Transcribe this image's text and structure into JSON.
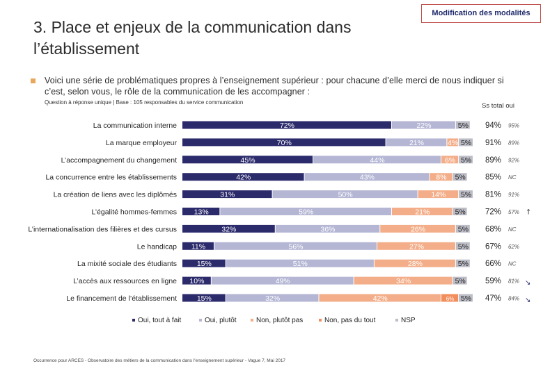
{
  "header": {
    "title": "3. Place et enjeux de la communication dans l’établissement",
    "tag": "Modification des modalités"
  },
  "intro": {
    "question": "Voici une série de problématiques propres à l’enseignement supérieur : pour chacune d’elle merci de nous indiquer si c’est, selon vous, le rôle de la communication de les accompagner :",
    "note": "Question à réponse unique | Base : 105 responsables du service communication"
  },
  "footer": "Occurrence pour ARCES - Observatoire des métiers de la communication dans l'enseignement supérieur - Vague 7, Mai 2017",
  "colors": {
    "s1": "#2b2a6b",
    "s2": "#b4b6d4",
    "s3": "#f3ae89",
    "s4": "#f28d5c",
    "s5": "#bcbdc7",
    "ss_arrow_up": "#333333",
    "ss_arrow_down": "#1f2a6b"
  },
  "chart_data": {
    "type": "bar",
    "orientation": "horizontal",
    "stacked": true,
    "categories": [
      "La communication interne",
      "La marque employeur",
      "L’accompagnement du changement",
      "La concurrence entre les établissements",
      "La création de liens avec les diplômés",
      "L’égalité hommes-femmes",
      "L’internationalisation des filières et des cursus",
      "Le handicap",
      "La mixité sociale des étudiants",
      "L’accès aux ressources en ligne",
      "Le financement de l’établissement"
    ],
    "series": [
      {
        "name": "Oui, tout à fait",
        "values": [
          72,
          70,
          45,
          42,
          31,
          13,
          32,
          11,
          15,
          10,
          15
        ]
      },
      {
        "name": "Oui, plutôt",
        "values": [
          22,
          21,
          44,
          43,
          50,
          59,
          36,
          56,
          51,
          49,
          32
        ]
      },
      {
        "name": "Non, plutôt pas",
        "values": [
          0,
          4,
          6,
          8,
          14,
          21,
          26,
          27,
          28,
          34,
          42
        ]
      },
      {
        "name": "Non, pas du tout",
        "values": [
          0,
          0,
          0,
          0,
          0,
          0,
          0,
          0,
          0,
          0,
          6
        ]
      },
      {
        "name": "NSP",
        "values": [
          5,
          5,
          5,
          5,
          5,
          5,
          5,
          5,
          5,
          5,
          5
        ]
      }
    ],
    "labels": [
      [
        "72%",
        "22%",
        "",
        "",
        "5%"
      ],
      [
        "70%",
        "21%",
        "4%",
        "",
        "5%"
      ],
      [
        "45%",
        "44%",
        "6%",
        "",
        "5%"
      ],
      [
        "42%",
        "43%",
        "8%",
        "",
        "5%"
      ],
      [
        "31%",
        "50%",
        "14%",
        "",
        "5%"
      ],
      [
        "13%",
        "59%",
        "21%",
        "",
        "5%"
      ],
      [
        "32%",
        "36%",
        "26%",
        "",
        "5%"
      ],
      [
        "11%",
        "56%",
        "27%",
        "",
        "5%"
      ],
      [
        "15%",
        "51%",
        "28%",
        "",
        "5%"
      ],
      [
        "10%",
        "49%",
        "34%",
        "",
        "5%"
      ],
      [
        "15%",
        "32%",
        "42%",
        "6%",
        "5%"
      ]
    ],
    "ss_total_oui": {
      "header": "Ss total oui",
      "values": [
        "94%",
        "91%",
        "89%",
        "85%",
        "81%",
        "72%",
        "68%",
        "67%",
        "66%",
        "59%",
        "47%"
      ],
      "previous": [
        "95%",
        "89%",
        "92%",
        "NC",
        "91%",
        "57%",
        "NC",
        "62%",
        "NC",
        "81%",
        "84%"
      ],
      "trend": [
        "",
        "",
        "",
        "",
        "",
        "up",
        "",
        "",
        "",
        "down",
        "down"
      ]
    },
    "xlim": [
      0,
      100
    ],
    "legend_position": "bottom"
  }
}
